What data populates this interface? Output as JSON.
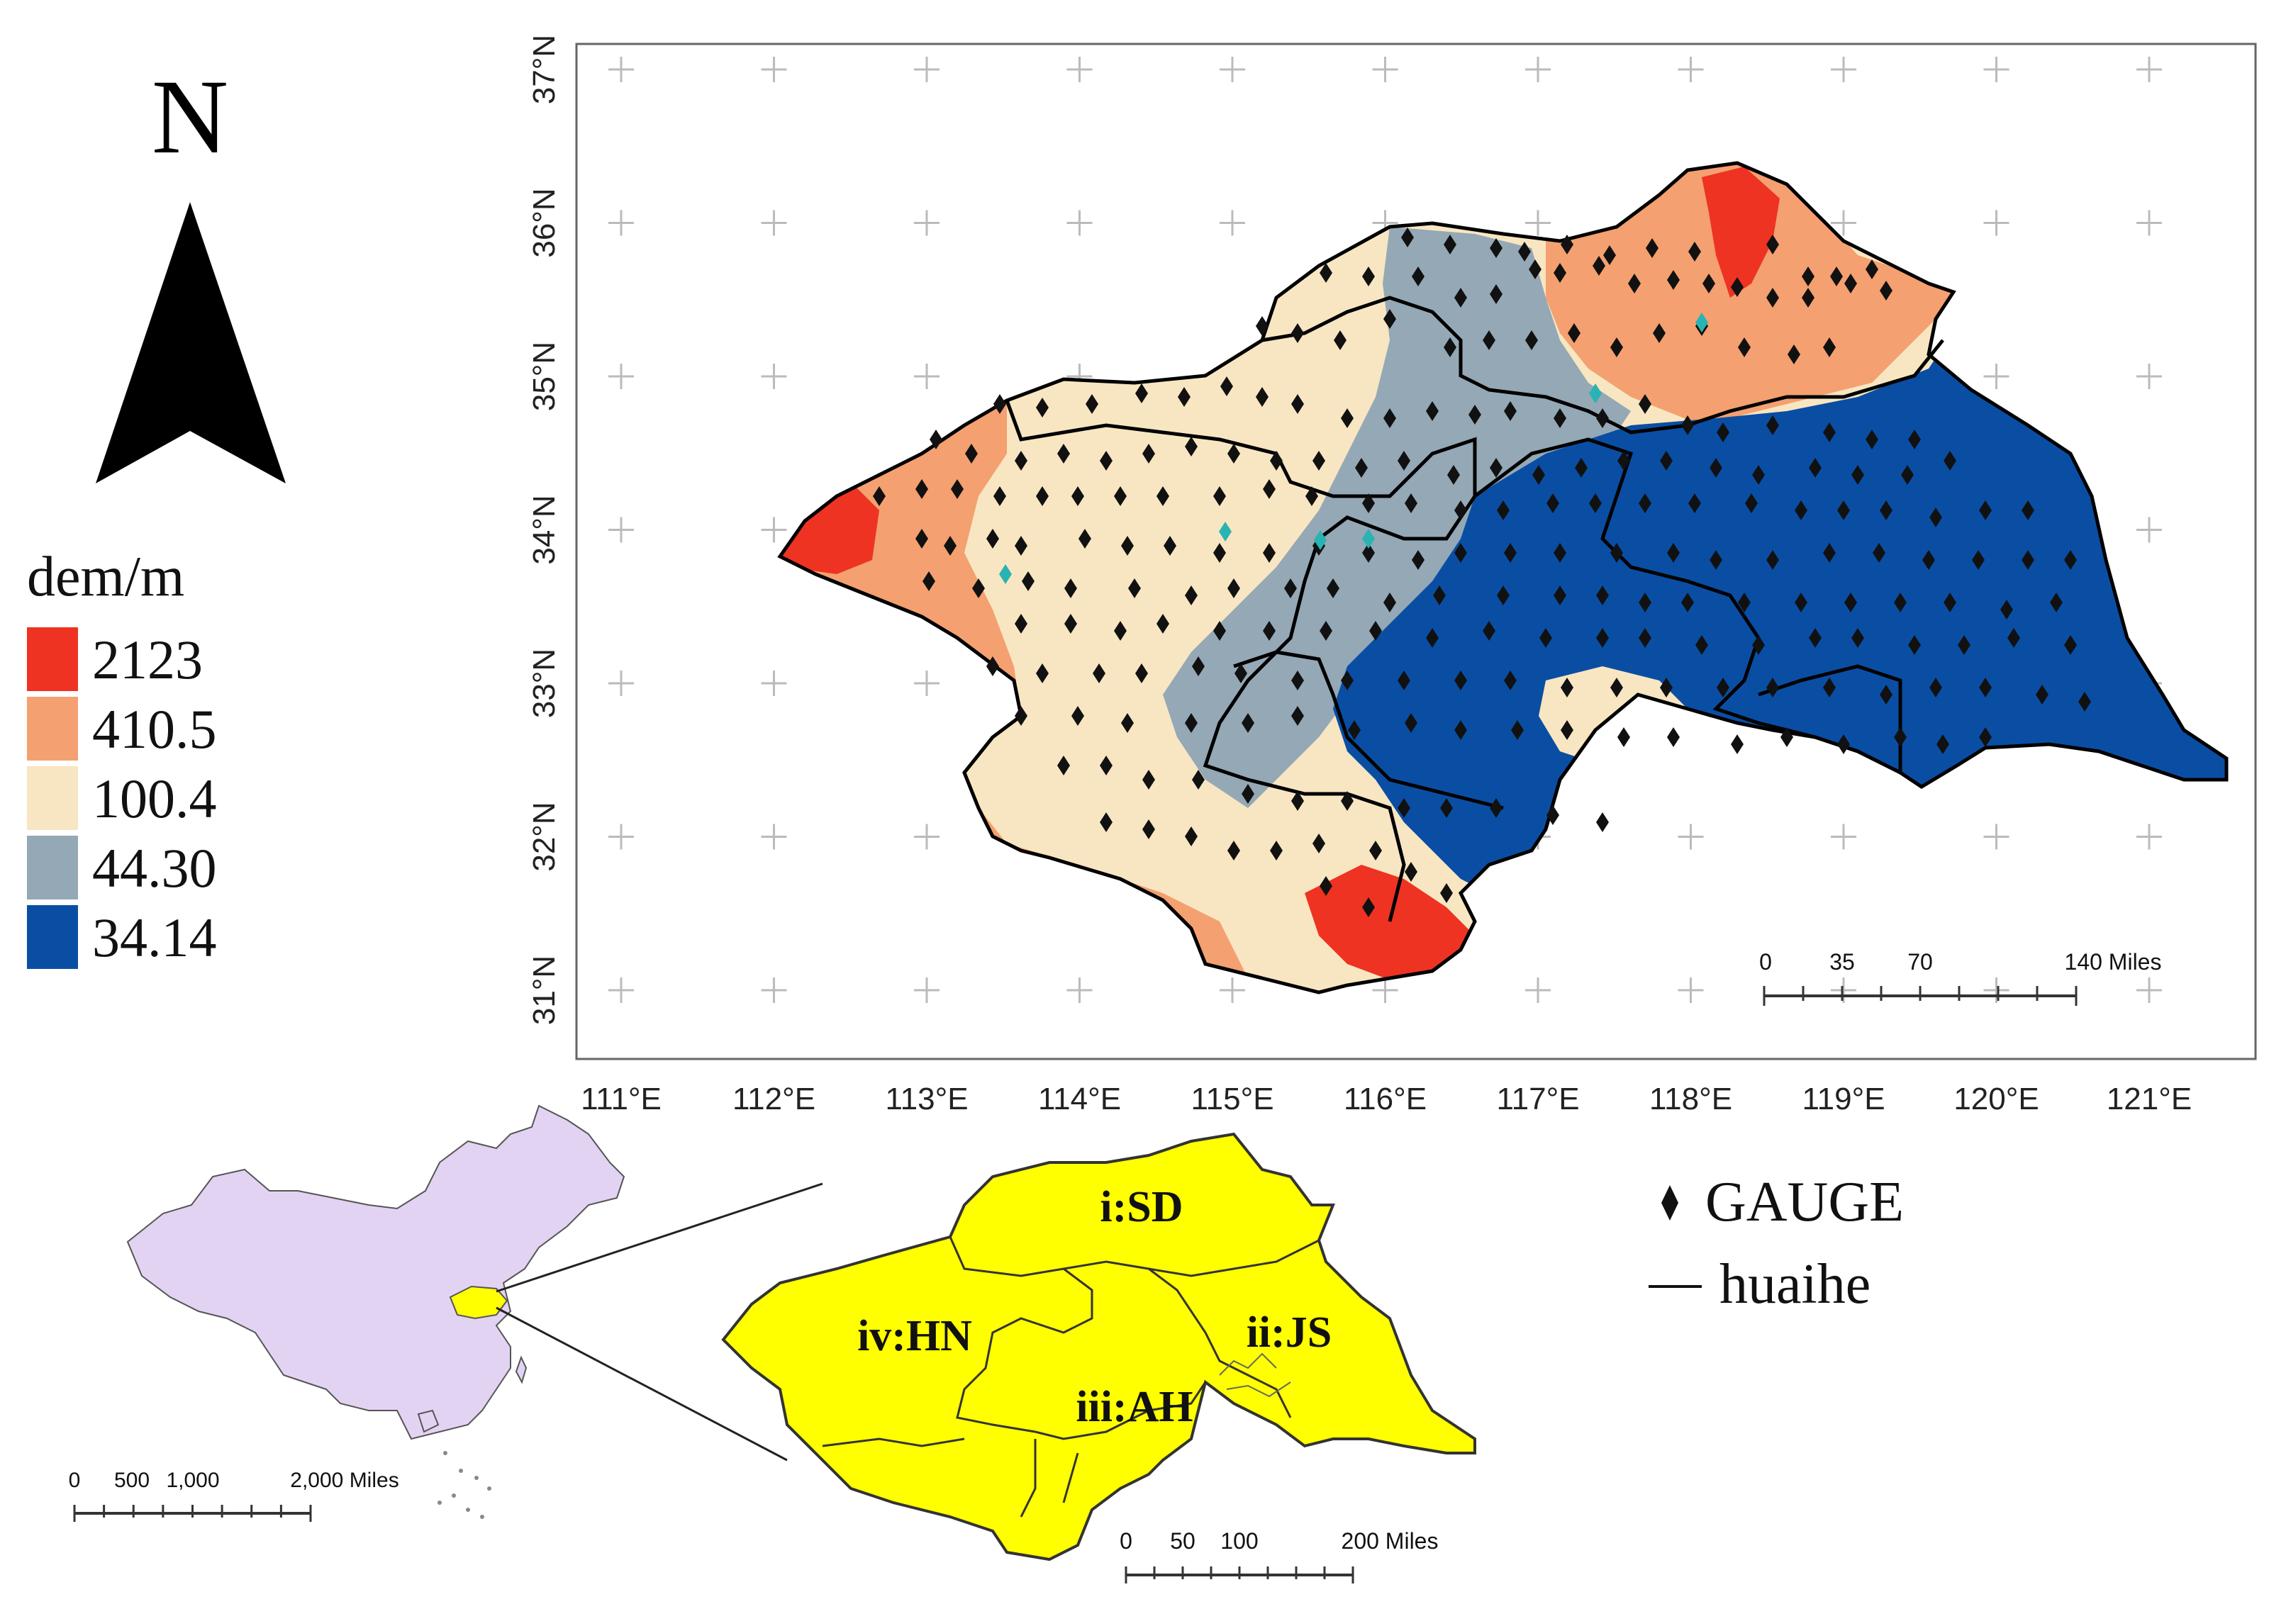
{
  "north_arrow": {
    "label": "N"
  },
  "legend": {
    "title": "dem/m",
    "entries": [
      {
        "label": "2123",
        "color": "#ee3322"
      },
      {
        "label": "410.5",
        "color": "#f4a070"
      },
      {
        "label": "100.4",
        "color": "#f8e6c2"
      },
      {
        "label": "44.30",
        "color": "#94a8b6"
      },
      {
        "label": "34.14",
        "color": "#0a4ea4"
      }
    ]
  },
  "main_map": {
    "lat_labels": [
      "37°N",
      "36°N",
      "35°N",
      "34°N",
      "33°N",
      "32°N",
      "31°N"
    ],
    "lon_labels": [
      "111°E",
      "112°E",
      "113°E",
      "114°E",
      "115°E",
      "116°E",
      "117°E",
      "118°E",
      "119°E",
      "120°E",
      "121°E"
    ],
    "scale_bar": {
      "labels": [
        "0",
        "35",
        "70",
        "140 Miles"
      ]
    }
  },
  "symbol_legend": {
    "gauge_label": "GAUGE",
    "boundary_label": "huaihe"
  },
  "inset_china": {
    "fill": "#e3d3f3",
    "highlight": "#ffff00",
    "scale_bar": {
      "labels": [
        "0",
        "500",
        "1,000",
        "2,000 Miles"
      ]
    }
  },
  "inset_basin": {
    "fill": "#ffff00",
    "regions": [
      "i:SD",
      "ii:JS",
      "iii:AH",
      "iv:HN"
    ],
    "scale_bar": {
      "labels": [
        "0",
        "50",
        "100",
        "200 Miles"
      ]
    }
  },
  "colors": {
    "gauge": "#111111",
    "gauge_alt": "#2ab3b3",
    "grid": "#bbbbbb"
  }
}
